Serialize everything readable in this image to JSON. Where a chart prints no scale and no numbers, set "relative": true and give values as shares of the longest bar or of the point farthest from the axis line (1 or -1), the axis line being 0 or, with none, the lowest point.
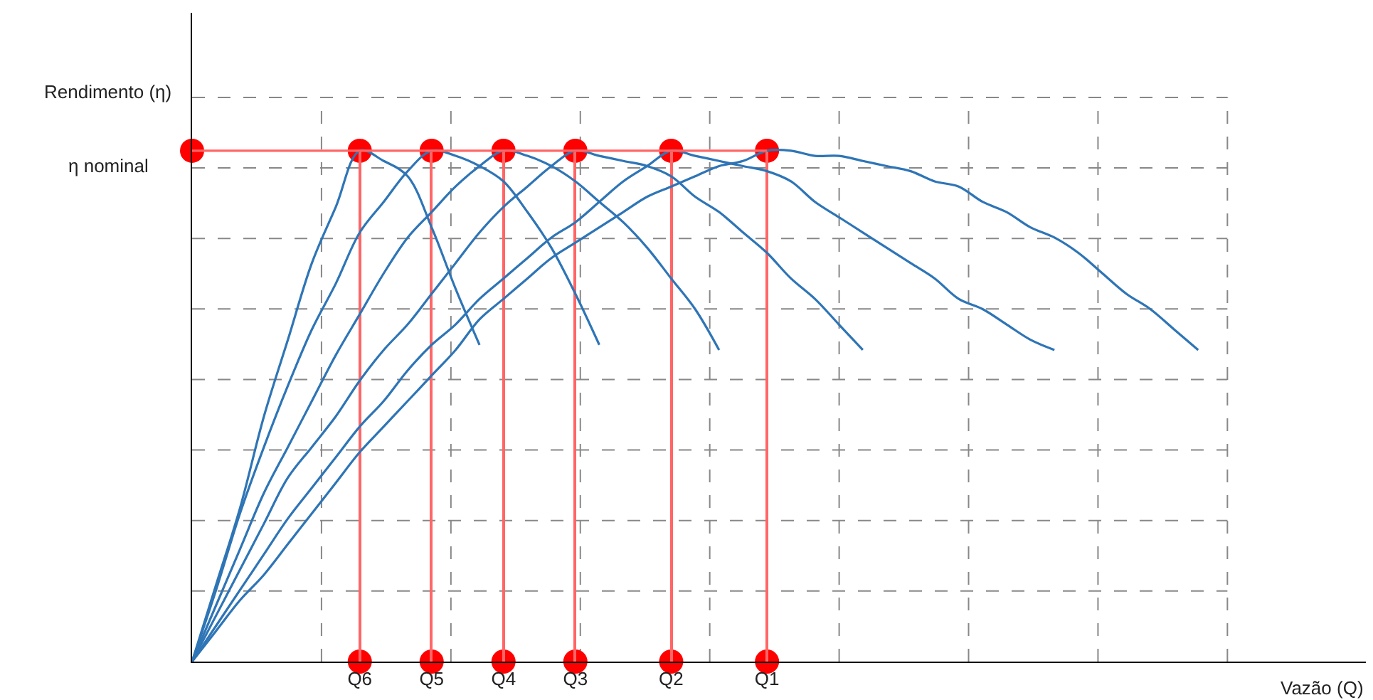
{
  "chart_data": {
    "type": "line",
    "relative": true,
    "xlabel": "Vazão (Q)",
    "ylabel": "Rendimento (η)",
    "annotations": [
      "η nominal"
    ],
    "categories": [
      null,
      null,
      null,
      null,
      null,
      null,
      null,
      "Q6",
      null,
      null,
      "Q5",
      null,
      null,
      "Q4",
      null,
      null,
      "Q3",
      null,
      null,
      null,
      "Q2",
      null,
      null,
      null,
      "Q1",
      null,
      null,
      null,
      null,
      null,
      null,
      null,
      null,
      null,
      null,
      null,
      null,
      null,
      null,
      null,
      null,
      null,
      null,
      null,
      null,
      null,
      null,
      null,
      null,
      null
    ],
    "grid": true,
    "line_style": "solid",
    "marker": "none",
    "series": [
      {
        "color": "#2e75b6",
        "values": [
          0,
          0.06,
          0.12,
          0.17,
          0.23,
          0.29,
          0.35,
          0.41,
          0.46,
          0.51,
          0.56,
          0.61,
          0.67,
          0.71,
          0.75,
          0.79,
          0.82,
          0.85,
          0.88,
          0.91,
          0.93,
          0.95,
          0.97,
          0.98,
          1,
          1,
          0.99,
          0.99,
          0.98,
          0.97,
          0.96,
          0.94,
          0.93,
          0.9,
          0.88,
          0.85,
          0.83,
          0.8,
          0.76,
          0.72,
          0.69,
          0.65,
          0.61,
          null,
          null,
          null,
          null,
          null,
          null,
          null
        ]
      },
      {
        "color": "#2e75b6",
        "values": [
          0,
          0.07,
          0.14,
          0.21,
          0.28,
          0.34,
          0.4,
          0.46,
          0.51,
          0.57,
          0.62,
          0.66,
          0.71,
          0.75,
          0.79,
          0.83,
          0.86,
          0.9,
          0.94,
          0.97,
          1,
          0.99,
          0.98,
          0.97,
          0.96,
          0.94,
          0.9,
          0.87,
          0.84,
          0.81,
          0.78,
          0.75,
          0.71,
          0.69,
          0.66,
          0.63,
          0.61,
          null,
          null,
          null,
          null,
          null,
          null,
          null,
          null,
          null,
          null,
          null,
          null,
          null
        ]
      },
      {
        "color": "#2e75b6",
        "values": [
          0,
          0.09,
          0.18,
          0.27,
          0.36,
          0.42,
          0.48,
          0.55,
          0.61,
          0.66,
          0.72,
          0.78,
          0.84,
          0.89,
          0.93,
          0.97,
          1,
          0.99,
          0.98,
          0.97,
          0.95,
          0.91,
          0.88,
          0.84,
          0.8,
          0.75,
          0.71,
          0.66,
          0.61,
          null,
          null,
          null,
          null,
          null,
          null,
          null,
          null,
          null,
          null,
          null,
          null,
          null,
          null,
          null,
          null,
          null,
          null,
          null,
          null,
          null
        ]
      },
      {
        "color": "#2e75b6",
        "values": [
          0,
          0.11,
          0.22,
          0.33,
          0.42,
          0.51,
          0.6,
          0.68,
          0.76,
          0.83,
          0.88,
          0.93,
          0.97,
          1,
          0.99,
          0.97,
          0.94,
          0.9,
          0.86,
          0.81,
          0.75,
          0.69,
          0.61,
          null,
          null,
          null,
          null,
          null,
          null,
          null,
          null,
          null,
          null,
          null,
          null,
          null,
          null,
          null,
          null,
          null,
          null,
          null,
          null,
          null,
          null,
          null,
          null,
          null,
          null,
          null
        ]
      },
      {
        "color": "#2e75b6",
        "values": [
          0,
          0.14,
          0.29,
          0.42,
          0.54,
          0.65,
          0.74,
          0.84,
          0.9,
          0.96,
          1,
          0.99,
          0.97,
          0.94,
          0.88,
          0.81,
          0.72,
          0.62,
          null,
          null,
          null,
          null,
          null,
          null,
          null,
          null,
          null,
          null,
          null,
          null,
          null,
          null,
          null,
          null,
          null,
          null,
          null,
          null,
          null,
          null,
          null,
          null,
          null,
          null,
          null,
          null,
          null,
          null,
          null,
          null
        ]
      },
      {
        "color": "#2e75b6",
        "values": [
          0,
          0.15,
          0.3,
          0.48,
          0.63,
          0.78,
          0.89,
          1,
          0.98,
          0.95,
          0.85,
          0.73,
          0.62,
          null,
          null,
          null,
          null,
          null,
          null,
          null,
          null,
          null,
          null,
          null,
          null,
          null,
          null,
          null,
          null,
          null,
          null,
          null,
          null,
          null,
          null,
          null,
          null,
          null,
          null,
          null,
          null,
          null,
          null,
          null,
          null,
          null,
          null,
          null,
          null,
          null
        ]
      },
      {
        "color": "#ff6666",
        "values": [
          1,
          1,
          1,
          1,
          1,
          1,
          1,
          1,
          1,
          1,
          1,
          1,
          1,
          1,
          1,
          1,
          1,
          1,
          1,
          1,
          1,
          1,
          1,
          1,
          1,
          null,
          null,
          null,
          null,
          null,
          null,
          null,
          null,
          null,
          null,
          null,
          null,
          null,
          null,
          null,
          null,
          null,
          null,
          null,
          null,
          null,
          null,
          null,
          null,
          null
        ]
      },
      {
        "type": "bar",
        "color": "#ff6666",
        "values": [
          null,
          null,
          null,
          null,
          null,
          null,
          null,
          1,
          null,
          null,
          1,
          null,
          null,
          1,
          null,
          null,
          1,
          null,
          null,
          null,
          1,
          null,
          null,
          null,
          1,
          null,
          null,
          null,
          null,
          null,
          null,
          null,
          null,
          null,
          null,
          null,
          null,
          null,
          null,
          null,
          null,
          null,
          null,
          null,
          null,
          null,
          null,
          null,
          null,
          null
        ]
      },
      {
        "type": "scatter",
        "marker": "circle",
        "color": "#ff0000",
        "values": [
          1,
          null,
          null,
          null,
          null,
          null,
          null,
          1,
          null,
          null,
          1,
          null,
          null,
          1,
          null,
          null,
          1,
          null,
          null,
          null,
          1,
          null,
          null,
          null,
          1,
          null,
          null,
          null,
          null,
          null,
          null,
          null,
          null,
          null,
          null,
          null,
          null,
          null,
          null,
          null,
          null,
          null,
          null,
          null,
          null,
          null,
          null,
          null,
          null,
          null
        ]
      },
      {
        "type": "scatter",
        "marker": "circle",
        "color": "#ff0000",
        "values": [
          null,
          null,
          null,
          null,
          null,
          null,
          null,
          0,
          null,
          null,
          0,
          null,
          null,
          0,
          null,
          null,
          0,
          null,
          null,
          null,
          0,
          null,
          null,
          null,
          0,
          null,
          null,
          null,
          null,
          null,
          null,
          null,
          null,
          null,
          null,
          null,
          null,
          null,
          null,
          null,
          null,
          null,
          null,
          null,
          null,
          null,
          null,
          null,
          null,
          null
        ]
      }
    ]
  }
}
